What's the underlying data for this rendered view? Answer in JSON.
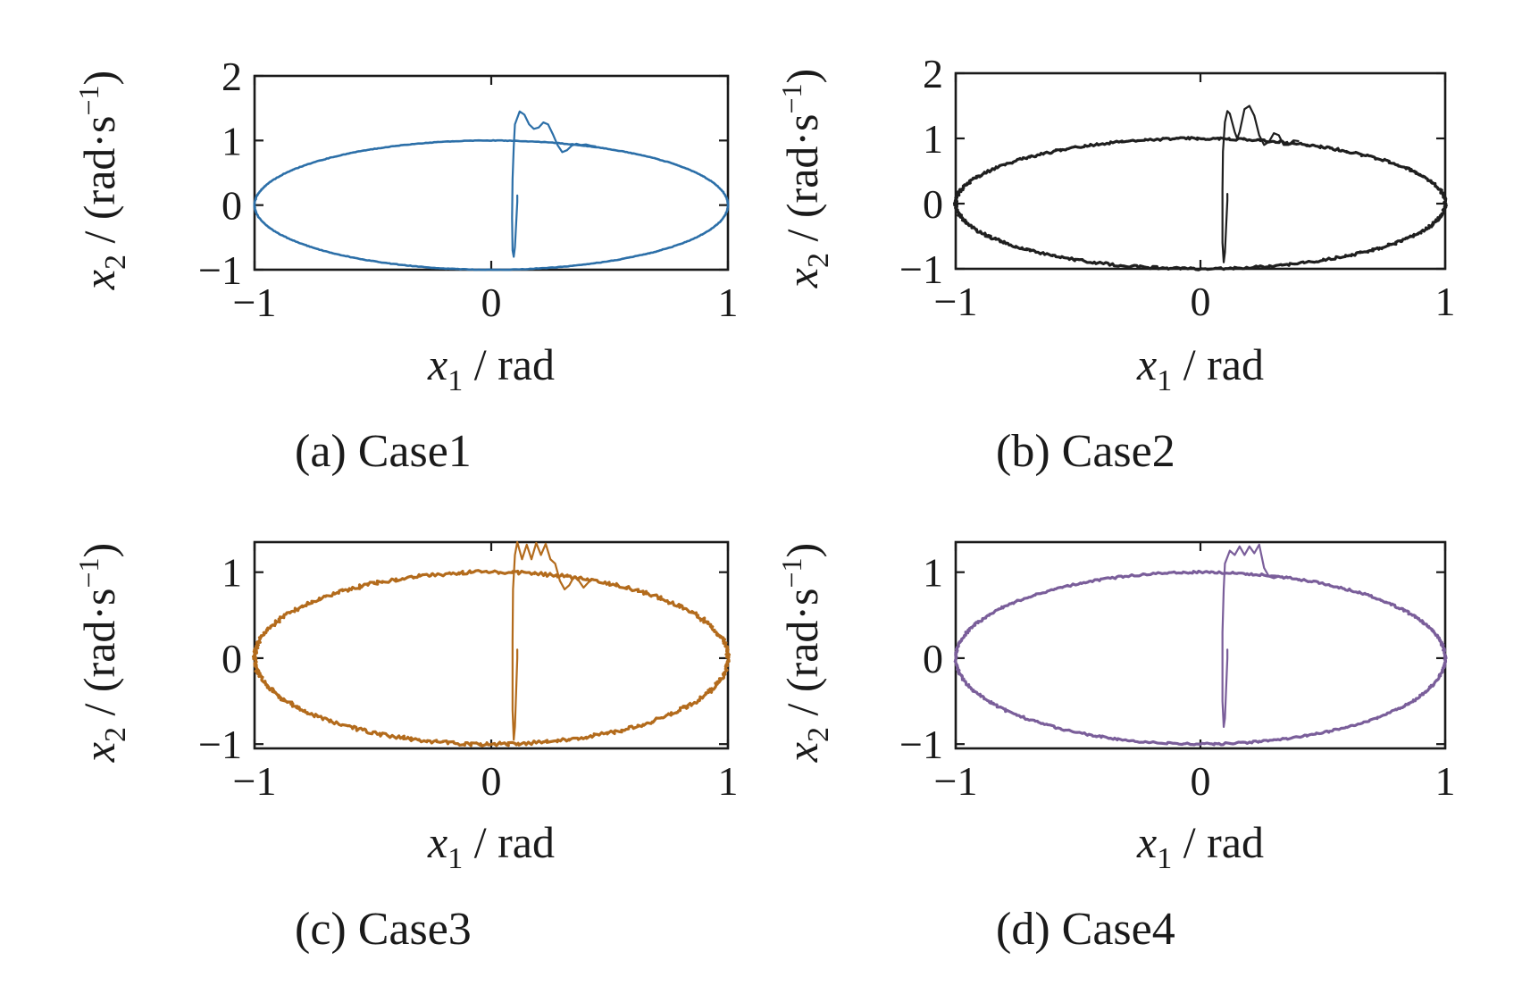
{
  "chart_data": [
    {
      "type": "line",
      "caption": "(a) Case1",
      "xlabel": {
        "var": "x",
        "sub": "1",
        "unit": "rad"
      },
      "ylabel": {
        "var": "x",
        "sub": "2",
        "unit": "rad·s",
        "exp": "−1"
      },
      "xlim": [
        -1,
        1
      ],
      "ylim": [
        -1,
        2
      ],
      "xticks": [
        {
          "v": -1,
          "label": "−1"
        },
        {
          "v": 0,
          "label": "0"
        },
        {
          "v": 1,
          "label": "1"
        }
      ],
      "yticks": [
        {
          "v": -1,
          "label": "−1"
        },
        {
          "v": 0,
          "label": "0"
        },
        {
          "v": 1,
          "label": "1"
        },
        {
          "v": 2,
          "label": "2"
        }
      ],
      "series": [
        {
          "color": "#2c6fa8",
          "noise": 0.004,
          "ellipse": {
            "a": 1.0,
            "b": 1.0
          },
          "transient": [
            [
              0.11,
              0.15
            ],
            [
              0.11,
              0.05
            ],
            [
              0.105,
              -0.3
            ],
            [
              0.1,
              -0.65
            ],
            [
              0.095,
              -0.8
            ],
            [
              0.09,
              -0.7
            ],
            [
              0.088,
              -0.2
            ],
            [
              0.09,
              0.4
            ],
            [
              0.095,
              0.9
            ],
            [
              0.1,
              1.25
            ],
            [
              0.12,
              1.45
            ],
            [
              0.14,
              1.4
            ],
            [
              0.16,
              1.25
            ],
            [
              0.18,
              1.18
            ],
            [
              0.2,
              1.2
            ],
            [
              0.22,
              1.28
            ],
            [
              0.24,
              1.25
            ],
            [
              0.26,
              1.1
            ],
            [
              0.28,
              0.93
            ],
            [
              0.3,
              0.82
            ],
            [
              0.32,
              0.85
            ],
            [
              0.34,
              0.92
            ],
            [
              0.36,
              0.95
            ],
            [
              0.38,
              0.93
            ],
            [
              0.4,
              0.94
            ],
            [
              0.42,
              0.92
            ],
            [
              0.44,
              0.91
            ]
          ]
        }
      ]
    },
    {
      "type": "line",
      "caption": "(b) Case2",
      "xlabel": {
        "var": "x",
        "sub": "1",
        "unit": "rad"
      },
      "ylabel": {
        "var": "x",
        "sub": "2",
        "unit": "rad·s",
        "exp": "−1"
      },
      "xlim": [
        -1,
        1
      ],
      "ylim": [
        -1,
        2
      ],
      "xticks": [
        {
          "v": -1,
          "label": "−1"
        },
        {
          "v": 0,
          "label": "0"
        },
        {
          "v": 1,
          "label": "1"
        }
      ],
      "yticks": [
        {
          "v": -1,
          "label": "−1"
        },
        {
          "v": 0,
          "label": "0"
        },
        {
          "v": 1,
          "label": "1"
        },
        {
          "v": 2,
          "label": "2"
        }
      ],
      "series": [
        {
          "color": "#1f1f1f",
          "noise": 0.018,
          "ellipse": {
            "a": 1.0,
            "b": 1.0
          },
          "transient": [
            [
              0.11,
              0.15
            ],
            [
              0.11,
              0.05
            ],
            [
              0.105,
              -0.35
            ],
            [
              0.1,
              -0.75
            ],
            [
              0.095,
              -0.9
            ],
            [
              0.09,
              -0.6
            ],
            [
              0.09,
              0.2
            ],
            [
              0.092,
              0.8
            ],
            [
              0.1,
              1.25
            ],
            [
              0.11,
              1.42
            ],
            [
              0.12,
              1.38
            ],
            [
              0.14,
              1.1
            ],
            [
              0.15,
              1.0
            ],
            [
              0.16,
              1.1
            ],
            [
              0.18,
              1.45
            ],
            [
              0.2,
              1.5
            ],
            [
              0.22,
              1.35
            ],
            [
              0.24,
              1.05
            ],
            [
              0.26,
              0.9
            ],
            [
              0.28,
              0.95
            ],
            [
              0.3,
              1.08
            ],
            [
              0.32,
              1.05
            ],
            [
              0.34,
              0.9
            ],
            [
              0.36,
              0.9
            ],
            [
              0.38,
              0.97
            ],
            [
              0.4,
              0.96
            ]
          ]
        }
      ]
    },
    {
      "type": "line",
      "caption": "(c) Case3",
      "xlabel": {
        "var": "x",
        "sub": "1",
        "unit": "rad"
      },
      "ylabel": {
        "var": "x",
        "sub": "2",
        "unit": "rad·s",
        "exp": "−1"
      },
      "xlim": [
        -1,
        1
      ],
      "ylim": [
        -1.05,
        1.35
      ],
      "xticks": [
        {
          "v": -1,
          "label": "−1"
        },
        {
          "v": 0,
          "label": "0"
        },
        {
          "v": 1,
          "label": "1"
        }
      ],
      "yticks": [
        {
          "v": -1,
          "label": "−1"
        },
        {
          "v": 0,
          "label": "0"
        },
        {
          "v": 1,
          "label": "1"
        }
      ],
      "series": [
        {
          "color": "#b36b1c",
          "noise": 0.022,
          "ellipse": {
            "a": 1.0,
            "b": 1.0
          },
          "transient": [
            [
              0.11,
              0.1
            ],
            [
              0.11,
              0.0
            ],
            [
              0.105,
              -0.4
            ],
            [
              0.1,
              -0.8
            ],
            [
              0.095,
              -0.95
            ],
            [
              0.09,
              -0.6
            ],
            [
              0.09,
              0.2
            ],
            [
              0.092,
              0.8
            ],
            [
              0.1,
              1.2
            ],
            [
              0.11,
              1.35
            ],
            [
              0.13,
              1.15
            ],
            [
              0.15,
              1.32
            ],
            [
              0.17,
              1.15
            ],
            [
              0.19,
              1.34
            ],
            [
              0.21,
              1.2
            ],
            [
              0.23,
              1.33
            ],
            [
              0.25,
              1.15
            ],
            [
              0.27,
              1.1
            ],
            [
              0.29,
              0.9
            ],
            [
              0.31,
              0.8
            ],
            [
              0.33,
              0.85
            ],
            [
              0.35,
              0.95
            ],
            [
              0.37,
              0.9
            ],
            [
              0.39,
              0.82
            ],
            [
              0.41,
              0.88
            ],
            [
              0.43,
              0.92
            ]
          ]
        }
      ]
    },
    {
      "type": "line",
      "caption": "(d) Case4",
      "xlabel": {
        "var": "x",
        "sub": "1",
        "unit": "rad"
      },
      "ylabel": {
        "var": "x",
        "sub": "2",
        "unit": "rad·s",
        "exp": "−1"
      },
      "xlim": [
        -1,
        1
      ],
      "ylim": [
        -1.05,
        1.35
      ],
      "xticks": [
        {
          "v": -1,
          "label": "−1"
        },
        {
          "v": 0,
          "label": "0"
        },
        {
          "v": 1,
          "label": "1"
        }
      ],
      "yticks": [
        {
          "v": -1,
          "label": "−1"
        },
        {
          "v": 0,
          "label": "0"
        },
        {
          "v": 1,
          "label": "1"
        }
      ],
      "series": [
        {
          "color": "#7a5e9a",
          "noise": 0.012,
          "ellipse": {
            "a": 1.0,
            "b": 1.0
          },
          "transient": [
            [
              0.11,
              0.1
            ],
            [
              0.11,
              0.0
            ],
            [
              0.105,
              -0.35
            ],
            [
              0.1,
              -0.7
            ],
            [
              0.095,
              -0.8
            ],
            [
              0.09,
              -0.5
            ],
            [
              0.09,
              0.3
            ],
            [
              0.095,
              0.8
            ],
            [
              0.1,
              1.1
            ],
            [
              0.12,
              1.25
            ],
            [
              0.14,
              1.2
            ],
            [
              0.16,
              1.3
            ],
            [
              0.18,
              1.2
            ],
            [
              0.2,
              1.3
            ],
            [
              0.22,
              1.22
            ],
            [
              0.24,
              1.32
            ],
            [
              0.26,
              1.05
            ],
            [
              0.28,
              0.95
            ],
            [
              0.3,
              0.93
            ],
            [
              0.32,
              0.95
            ],
            [
              0.34,
              0.93
            ],
            [
              0.36,
              0.94
            ]
          ]
        }
      ]
    }
  ]
}
